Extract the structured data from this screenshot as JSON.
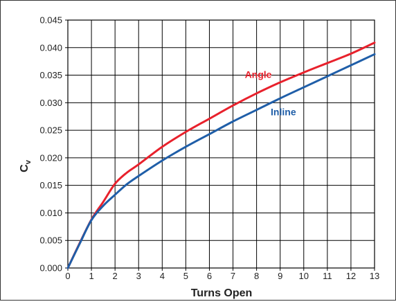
{
  "chart_data": {
    "type": "line",
    "title": "",
    "xlabel": "Turns Open",
    "ylabel": {
      "base": "C",
      "subscript": "v"
    },
    "xlim": [
      0,
      13
    ],
    "ylim": [
      0,
      0.045
    ],
    "x_ticks": [
      "0",
      "1",
      "2",
      "3",
      "4",
      "5",
      "6",
      "7",
      "8",
      "9",
      "10",
      "11",
      "12",
      "13"
    ],
    "y_ticks": [
      "0.000",
      "0.005",
      "0.010",
      "0.015",
      "0.020",
      "0.025",
      "0.030",
      "0.035",
      "0.040",
      "0.045"
    ],
    "grid": true,
    "legend": "inline labels",
    "series": [
      {
        "name": "Angle",
        "color": "#e8212c",
        "x": [
          0,
          0.5,
          1,
          1.5,
          2,
          2.5,
          3,
          4,
          5,
          6,
          7,
          8,
          9,
          10,
          11,
          12,
          13
        ],
        "y": [
          0.0,
          0.0045,
          0.0088,
          0.012,
          0.0153,
          0.0173,
          0.0188,
          0.022,
          0.0247,
          0.0271,
          0.0295,
          0.0317,
          0.0337,
          0.0355,
          0.0372,
          0.0389,
          0.0409
        ]
      },
      {
        "name": "Inline",
        "color": "#1f5ea8",
        "x": [
          0,
          0.5,
          1,
          1.5,
          2,
          2.5,
          3,
          4,
          5,
          6,
          7,
          8,
          9,
          10,
          11,
          12,
          13
        ],
        "y": [
          0.0,
          0.0044,
          0.0087,
          0.0113,
          0.0133,
          0.0152,
          0.0167,
          0.0195,
          0.022,
          0.0243,
          0.0266,
          0.0287,
          0.0308,
          0.0328,
          0.0348,
          0.0368,
          0.0388
        ]
      }
    ]
  }
}
